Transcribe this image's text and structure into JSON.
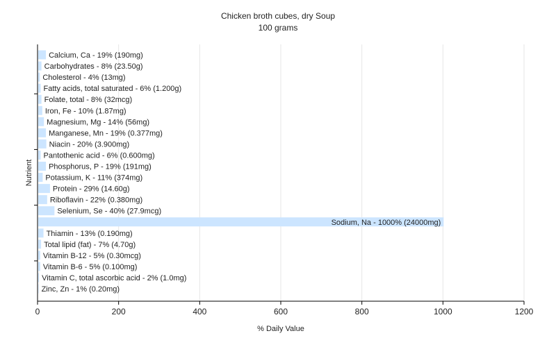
{
  "chart_data": {
    "type": "bar",
    "orientation": "horizontal",
    "title": "Chicken broth cubes, dry Soup",
    "subtitle": "100 grams",
    "xlabel": "% Daily Value",
    "ylabel": "Nutrient",
    "xlim": [
      0,
      1200
    ],
    "xticks": [
      0,
      200,
      400,
      600,
      800,
      1000,
      1200
    ],
    "grid": true,
    "bar_color": "#cce5ff",
    "categories": [
      "Calcium, Ca",
      "Carbohydrates",
      "Cholesterol",
      "Fatty acids, total saturated",
      "Folate, total",
      "Iron, Fe",
      "Magnesium, Mg",
      "Manganese, Mn",
      "Niacin",
      "Pantothenic acid",
      "Phosphorus, P",
      "Potassium, K",
      "Protein",
      "Riboflavin",
      "Selenium, Se",
      "Sodium, Na",
      "Thiamin",
      "Total lipid (fat)",
      "Vitamin B-12",
      "Vitamin B-6",
      "Vitamin C, total ascorbic acid",
      "Zinc, Zn"
    ],
    "values": [
      19,
      8,
      4,
      6,
      8,
      10,
      14,
      19,
      20,
      6,
      19,
      11,
      29,
      22,
      40,
      1000,
      13,
      7,
      5,
      5,
      2,
      1
    ],
    "labels": [
      "Calcium, Ca - 19% (190mg)",
      "Carbohydrates - 8% (23.50g)",
      "Cholesterol - 4% (13mg)",
      "Fatty acids, total saturated - 6% (1.200g)",
      "Folate, total - 8% (32mcg)",
      "Iron, Fe - 10% (1.87mg)",
      "Magnesium, Mg - 14% (56mg)",
      "Manganese, Mn - 19% (0.377mg)",
      "Niacin - 20% (3.900mg)",
      "Pantothenic acid - 6% (0.600mg)",
      "Phosphorus, P - 19% (191mg)",
      "Potassium, K - 11% (374mg)",
      "Protein - 29% (14.60g)",
      "Riboflavin - 22% (0.380mg)",
      "Selenium, Se - 40% (27.9mcg)",
      "Sodium, Na - 1000% (24000mg)",
      "Thiamin - 13% (0.190mg)",
      "Total lipid (fat) - 7% (4.70g)",
      "Vitamin B-12 - 5% (0.30mcg)",
      "Vitamin B-6 - 5% (0.100mg)",
      "Vitamin C, total ascorbic acid - 2% (1.0mg)",
      "Zinc, Zn - 1% (0.20mg)"
    ]
  }
}
